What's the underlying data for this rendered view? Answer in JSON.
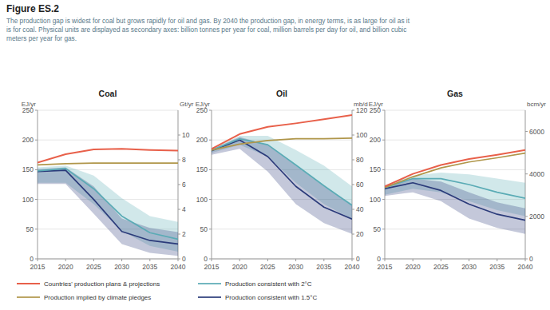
{
  "title": "Figure ES.2",
  "subtitle": "The production gap is widest for coal but grows rapidly for oil and gas. By 2040 the production gap, in energy terms, is as large for oil as it\nis for coal. Physical units are displayed as secondary axes: billion tonnes per year for coal, million barrels per day for oil, and billion cubic\nmeters per year for gas.",
  "chart_data": [
    {
      "type": "line",
      "title": "Coal",
      "ylabel": "EJ/yr",
      "y2label": "Gt/yr",
      "x": [
        2015,
        2020,
        2025,
        2030,
        2035,
        2040
      ],
      "xlim": [
        2015,
        2040
      ],
      "xticks": [
        2015,
        2020,
        2025,
        2030,
        2035,
        2040
      ],
      "ylim": [
        0,
        250
      ],
      "yticks": [
        0,
        50,
        100,
        150,
        200,
        250
      ],
      "y2lim": [
        0,
        12
      ],
      "y2ticks": [
        0,
        2,
        4,
        6,
        8,
        10
      ],
      "grid": true,
      "legend": "bottom",
      "series": [
        {
          "name": "Countries' production plans & projections",
          "color": "#e8604a",
          "values": [
            162,
            176,
            184,
            185,
            183,
            182
          ]
        },
        {
          "name": "Production implied by climate pledges",
          "color": "#b0964a",
          "values": [
            158,
            160,
            161,
            161,
            161,
            161
          ]
        },
        {
          "name": "Production consistent with 2°C",
          "color": "#5aabb5",
          "values": [
            148,
            152,
            118,
            72,
            44,
            33
          ],
          "band_low": [
            128,
            128,
            92,
            47,
            22,
            12
          ],
          "band_high": [
            154,
            157,
            140,
            102,
            72,
            62
          ]
        },
        {
          "name": "Production consistent with 1.5°C",
          "color": "#2b3b7a",
          "values": [
            147,
            149,
            100,
            46,
            31,
            25
          ],
          "band_low": [
            126,
            126,
            76,
            25,
            10,
            5
          ],
          "band_high": [
            151,
            154,
            122,
            68,
            52,
            45
          ]
        }
      ]
    },
    {
      "type": "line",
      "title": "Oil",
      "ylabel": "EJ/yr",
      "y2label": "mb/d",
      "x": [
        2015,
        2020,
        2025,
        2030,
        2035,
        2040
      ],
      "xlim": [
        2015,
        2040
      ],
      "xticks": [
        2015,
        2020,
        2025,
        2030,
        2035,
        2040
      ],
      "ylim": [
        0,
        250
      ],
      "yticks": [
        0,
        50,
        100,
        150,
        200,
        250
      ],
      "y2lim": [
        0,
        120
      ],
      "y2ticks": [
        0,
        20,
        40,
        60,
        80,
        100,
        120
      ],
      "grid": true,
      "series": [
        {
          "name": "Countries' production plans & projections",
          "color": "#e8604a",
          "values": [
            185,
            210,
            222,
            228,
            235,
            242
          ]
        },
        {
          "name": "Production implied by climate pledges",
          "color": "#b0964a",
          "values": [
            183,
            193,
            199,
            202,
            202,
            203
          ]
        },
        {
          "name": "Production consistent with 2°C",
          "color": "#5aabb5",
          "values": [
            183,
            202,
            192,
            158,
            123,
            90
          ],
          "band_low": [
            178,
            192,
            172,
            128,
            92,
            67
          ],
          "band_high": [
            185,
            207,
            207,
            183,
            157,
            122
          ]
        },
        {
          "name": "Production consistent with 1.5°C",
          "color": "#2b3b7a",
          "values": [
            182,
            200,
            172,
            122,
            87,
            67
          ],
          "band_low": [
            175,
            185,
            147,
            92,
            60,
            42
          ],
          "band_high": [
            184,
            205,
            192,
            157,
            122,
            92
          ]
        }
      ]
    },
    {
      "type": "line",
      "title": "Gas",
      "ylabel": "EJ/yr",
      "y2label": "bcm/yr",
      "x": [
        2015,
        2020,
        2025,
        2030,
        2035,
        2040
      ],
      "xlim": [
        2015,
        2040
      ],
      "xticks": [
        2015,
        2020,
        2025,
        2030,
        2035,
        2040
      ],
      "ylim": [
        0,
        250
      ],
      "yticks": [
        0,
        50,
        100,
        150,
        200,
        250
      ],
      "y2lim": [
        0,
        7000
      ],
      "y2ticks": [
        0,
        2000,
        4000,
        6000
      ],
      "grid": true,
      "series": [
        {
          "name": "Countries' production plans & projections",
          "color": "#e8604a",
          "values": [
            122,
            143,
            158,
            168,
            175,
            183
          ]
        },
        {
          "name": "Production implied by climate pledges",
          "color": "#b0964a",
          "values": [
            120,
            138,
            153,
            163,
            170,
            178
          ]
        },
        {
          "name": "Production consistent with 2°C",
          "color": "#5aabb5",
          "values": [
            120,
            135,
            135,
            125,
            112,
            102
          ],
          "band_low": [
            108,
            118,
            112,
            97,
            82,
            72
          ],
          "band_high": [
            124,
            140,
            145,
            142,
            135,
            128
          ]
        },
        {
          "name": "Production consistent with 1.5°C",
          "color": "#2b3b7a",
          "values": [
            118,
            128,
            115,
            92,
            75,
            65
          ],
          "band_low": [
            106,
            112,
            97,
            68,
            52,
            42
          ],
          "band_high": [
            122,
            135,
            130,
            112,
            95,
            85
          ]
        }
      ]
    }
  ]
}
